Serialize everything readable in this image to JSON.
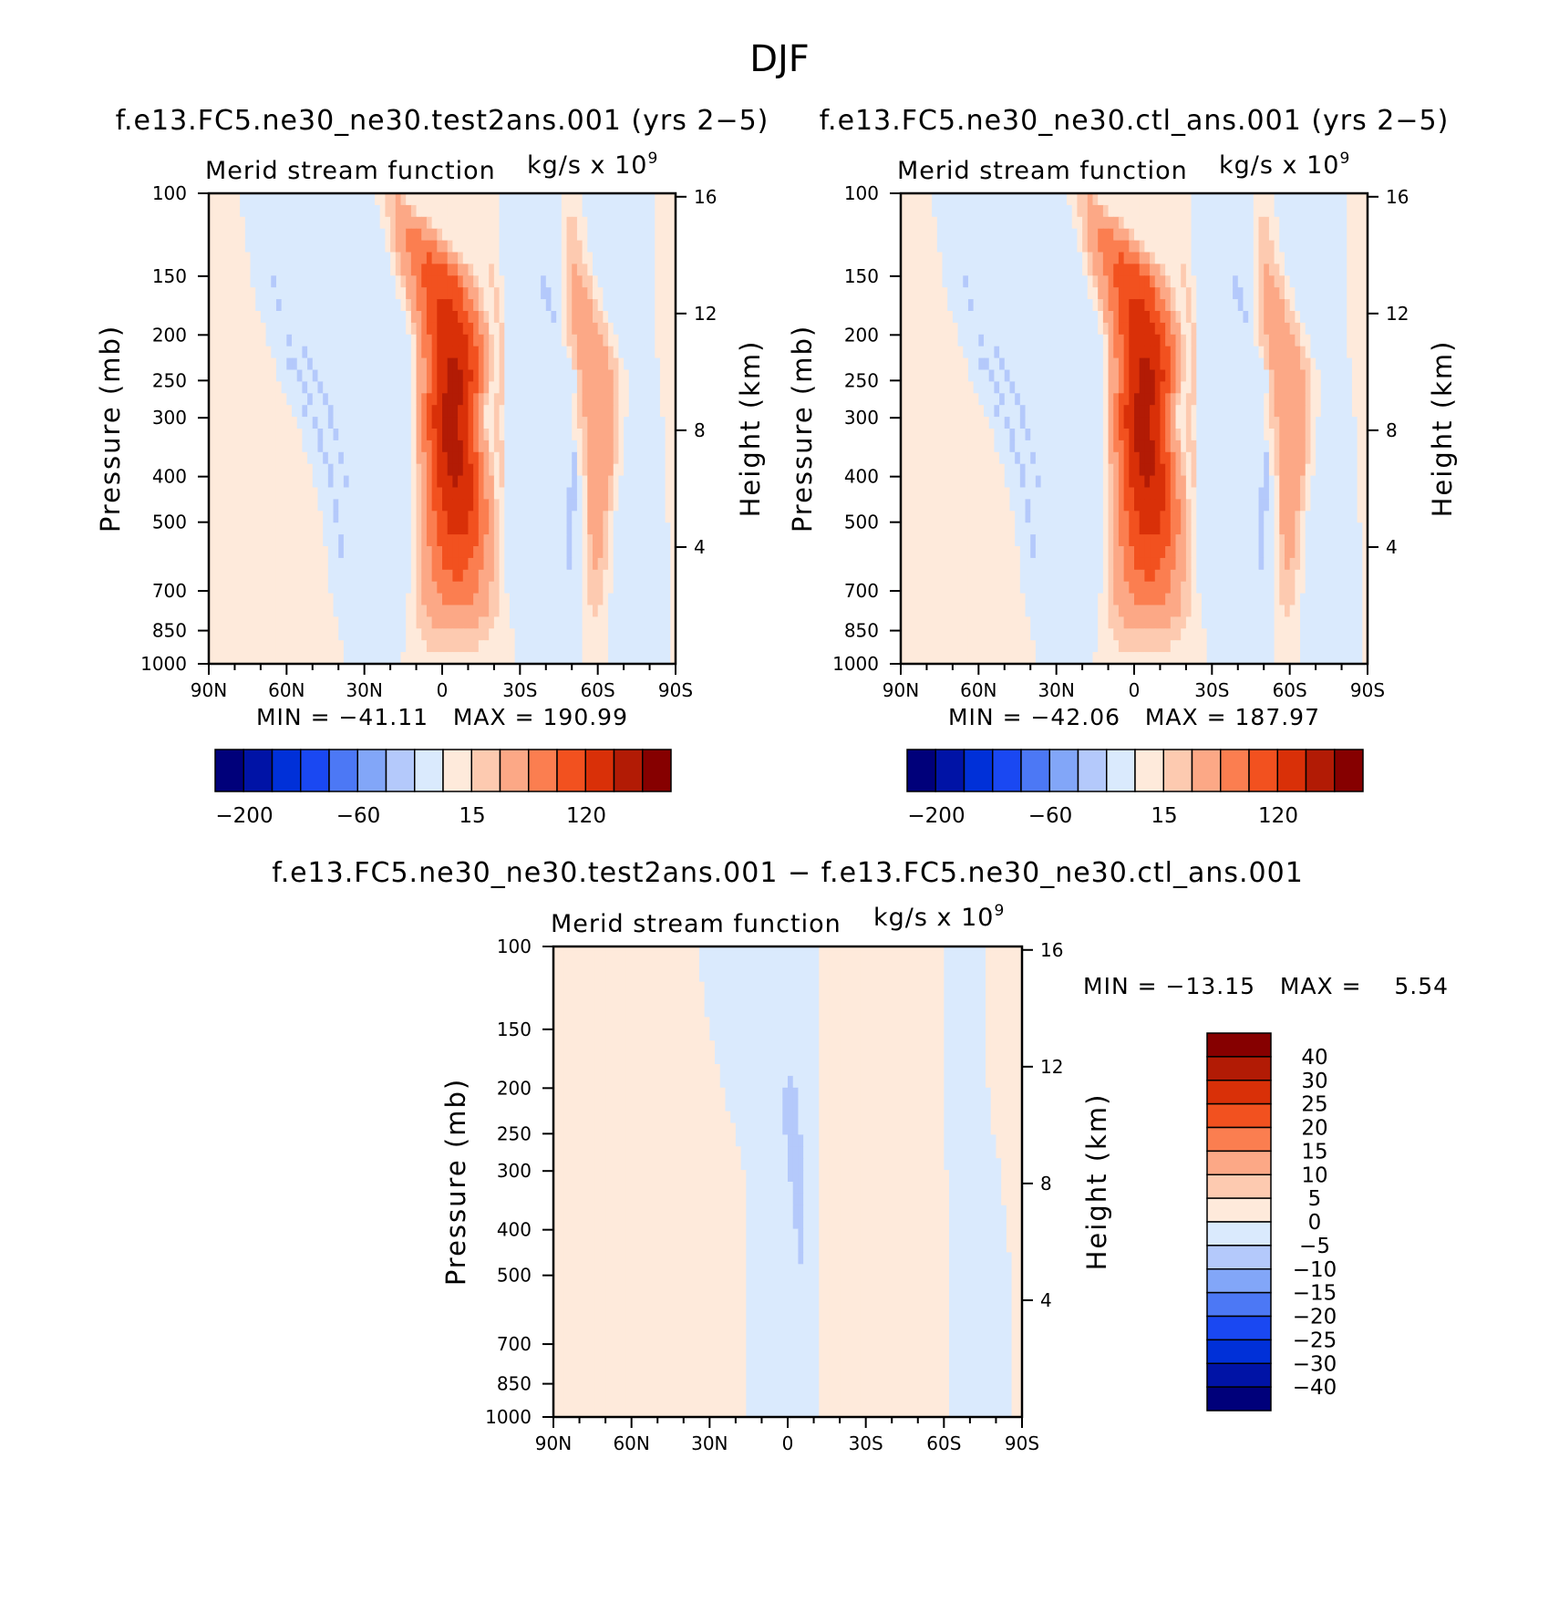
{
  "chart_data": [
    {
      "type": "heatmap",
      "case_title": "f.e13.FC5.ne30_ne30.test2ans.001 (yrs 2−5)",
      "title": "Merid stream function",
      "units": "kg/s x 10",
      "units_exp": "9",
      "ylabel": "Pressure (mb)",
      "y2label": "Height (km)",
      "xticks": [
        "90N",
        "60N",
        "30N",
        "0",
        "30S",
        "60S",
        "90S"
      ],
      "yticks": [
        100,
        150,
        200,
        250,
        300,
        400,
        500,
        700,
        850,
        1000
      ],
      "y2ticks": [
        16,
        12,
        8,
        4
      ],
      "xlim": [
        90,
        -90
      ],
      "ylim": [
        1000,
        100
      ],
      "y_scale": "log",
      "stats": {
        "min_label": "MIN",
        "max_label": "MAX",
        "min": "−41.11",
        "max": "190.99"
      },
      "contour_levels": [
        -200,
        -150,
        -100,
        -80,
        -60,
        -40,
        -20,
        0,
        15,
        30,
        60,
        90,
        120,
        150,
        200
      ],
      "colorbar_labels": [
        "−200",
        "−60",
        "15",
        "120"
      ],
      "cells": [
        {
          "lat": [
            78,
            74,
            68,
            63,
            56,
            50,
            46,
            43,
            40,
            37
          ],
          "amp": -4.3
        },
        {
          "lat": [
            73,
            68,
            63,
            58,
            53,
            45,
            41,
            37,
            34,
            30
          ],
          "amp": -26
        },
        {
          "lat": [
            72,
            66,
            61,
            56,
            51,
            45,
            42,
            40,
            37,
            34
          ],
          "amp": -30
        },
        {
          "lat": [
            70,
            65,
            59,
            53,
            47,
            41,
            38,
            36,
            33,
            30
          ],
          "amp": -22
        },
        {
          "lat": [
            63,
            58,
            51,
            44,
            38,
            34,
            32,
            29,
            27,
            24
          ],
          "amp": -19
        },
        {
          "lat": [
            48,
            39,
            24,
            16,
            14,
            14,
            13,
            13,
            14,
            16
          ],
          "amp": -6
        },
        {
          "lat": [
            26,
            19,
            13,
            12,
            12,
            12,
            12,
            14,
            17,
            20
          ],
          "amp": 162
        },
        {
          "lat": [
            12,
            -16,
            -21,
            -21,
            -18,
            -22,
            -24,
            -25,
            -27,
            -27
          ],
          "amp": 27
        },
        {
          "lat": [
            -21,
            -23,
            -24,
            -24,
            -24,
            -24,
            -24,
            -25,
            -25,
            -25
          ],
          "amp": -18
        },
        {
          "lat": [
            -26,
            -32,
            -45,
            -52,
            -49,
            -48,
            -45,
            -43,
            -41,
            -41
          ],
          "amp": -32
        },
        {
          "lat": [
            -45,
            -45,
            -45,
            -48,
            -50,
            -53,
            -53,
            -54,
            -54,
            -54
          ],
          "amp": 50
        },
        {
          "lat": [
            -53,
            -59,
            -67,
            -72,
            -71,
            -69,
            -66,
            -65,
            -63,
            -63
          ],
          "amp": -8
        },
        {
          "lat": [
            -81,
            -82,
            -82,
            -84,
            -85,
            -86,
            -87,
            -88,
            -88,
            -88
          ],
          "amp": 6
        }
      ]
    },
    {
      "type": "heatmap",
      "case_title": "f.e13.FC5.ne30_ne30.ctl_ans.001 (yrs 2−5)",
      "title": "Merid stream function",
      "units": "kg/s x 10",
      "units_exp": "9",
      "ylabel": "Pressure (mb)",
      "y2label": "Height (km)",
      "xticks": [
        "90N",
        "60N",
        "30N",
        "0",
        "30S",
        "60S",
        "90S"
      ],
      "yticks": [
        100,
        150,
        200,
        250,
        300,
        400,
        500,
        700,
        850,
        1000
      ],
      "y2ticks": [
        16,
        12,
        8,
        4
      ],
      "xlim": [
        90,
        -90
      ],
      "ylim": [
        1000,
        100
      ],
      "y_scale": "log",
      "stats": {
        "min_label": "MIN",
        "max_label": "MAX",
        "min": "−42.06",
        "max": "187.97"
      },
      "contour_levels": [
        -200,
        -150,
        -100,
        -80,
        -60,
        -40,
        -20,
        0,
        15,
        30,
        60,
        90,
        120,
        150,
        200
      ],
      "colorbar_labels": [
        "−200",
        "−60",
        "15",
        "120"
      ],
      "cells": [
        {
          "lat": [
            78,
            74,
            68,
            63,
            56,
            50,
            46,
            43,
            40,
            37
          ],
          "amp": -4.3
        },
        {
          "lat": [
            73,
            68,
            63,
            58,
            53,
            45,
            41,
            37,
            34,
            30
          ],
          "amp": -26
        },
        {
          "lat": [
            72,
            66,
            61,
            56,
            51,
            45,
            42,
            40,
            37,
            34
          ],
          "amp": -30
        },
        {
          "lat": [
            70,
            65,
            59,
            53,
            47,
            41,
            38,
            36,
            33,
            30
          ],
          "amp": -22
        },
        {
          "lat": [
            63,
            58,
            51,
            44,
            38,
            34,
            32,
            29,
            27,
            24
          ],
          "amp": -19
        },
        {
          "lat": [
            48,
            39,
            24,
            16,
            14,
            14,
            13,
            13,
            14,
            16
          ],
          "amp": -6
        },
        {
          "lat": [
            26,
            19,
            13,
            12,
            12,
            12,
            12,
            14,
            17,
            20
          ],
          "amp": 162
        },
        {
          "lat": [
            12,
            -16,
            -21,
            -21,
            -18,
            -22,
            -24,
            -25,
            -27,
            -27
          ],
          "amp": 27
        },
        {
          "lat": [
            -21,
            -23,
            -24,
            -24,
            -24,
            -24,
            -24,
            -25,
            -25,
            -25
          ],
          "amp": -18
        },
        {
          "lat": [
            -26,
            -32,
            -45,
            -52,
            -49,
            -48,
            -45,
            -43,
            -41,
            -41
          ],
          "amp": -32
        },
        {
          "lat": [
            -45,
            -45,
            -45,
            -48,
            -50,
            -53,
            -53,
            -54,
            -54,
            -54
          ],
          "amp": 50
        },
        {
          "lat": [
            -53,
            -59,
            -67,
            -72,
            -71,
            -69,
            -66,
            -65,
            -63,
            -63
          ],
          "amp": -8
        },
        {
          "lat": [
            -81,
            -82,
            -82,
            -84,
            -85,
            -86,
            -87,
            -88,
            -88,
            -88
          ],
          "amp": 6
        }
      ]
    },
    {
      "type": "heatmap",
      "case_title": "f.e13.FC5.ne30_ne30.test2ans.001 − f.e13.FC5.ne30_ne30.ctl_ans.001",
      "title": "Merid stream function",
      "units": "kg/s x 10",
      "units_exp": "9",
      "ylabel": "Pressure (mb)",
      "y2label": "Height (km)",
      "xticks": [
        "90N",
        "60N",
        "30N",
        "0",
        "30S",
        "60S",
        "90S"
      ],
      "yticks": [
        100,
        150,
        200,
        250,
        300,
        400,
        500,
        700,
        850,
        1000
      ],
      "y2ticks": [
        16,
        12,
        8,
        4
      ],
      "xlim": [
        90,
        -90
      ],
      "ylim": [
        1000,
        100
      ],
      "y_scale": "log",
      "stats": {
        "min_label": "MIN",
        "max_label": "MAX",
        "min": "−13.15",
        "max": "5.54"
      },
      "contour_levels": [
        -40,
        -30,
        -25,
        -20,
        -15,
        -10,
        -5,
        0,
        5,
        10,
        15,
        20,
        25,
        30,
        40
      ],
      "colorbar_labels": [
        "40",
        "30",
        "25",
        "20",
        "15",
        "10",
        "5",
        "0",
        "−5",
        "−10",
        "−15",
        "−20",
        "−25",
        "−30",
        "−40"
      ],
      "cells": [
        {
          "lat": [
            87,
            87,
            87,
            86,
            86,
            86,
            86,
            86,
            86,
            86
          ],
          "amp": 2
        },
        {
          "lat": [
            73,
            68,
            64,
            60,
            55,
            51,
            46,
            43,
            40,
            37
          ],
          "amp": 1.5
        },
        {
          "lat": [
            35,
            30,
            25,
            20,
            17,
            16,
            16,
            16,
            16,
            16
          ],
          "amp": -3
        },
        {
          "lat": [
            24,
            15,
            10,
            8,
            5,
            2,
            0,
            -1,
            -2,
            -3
          ],
          "amp": -6
        },
        {
          "lat": [
            -12,
            -12,
            -12,
            -12,
            -12,
            -12,
            -12,
            -12,
            -12,
            -12
          ],
          "amp": 2
        },
        {
          "lat": [
            -60,
            -60,
            -60,
            -60,
            -61,
            -62,
            -62,
            -62,
            -62,
            -62
          ],
          "amp": -2.5
        },
        {
          "lat": [
            -75,
            -76,
            -77,
            -79,
            -82,
            -84,
            -86,
            -86,
            -86,
            -86
          ],
          "amp": 1.5
        }
      ]
    }
  ],
  "figure_title": "DJF",
  "colors": {
    "palette": [
      "#00007a",
      "#0013a6",
      "#0030d8",
      "#1a48f2",
      "#4c78f5",
      "#82a6f8",
      "#b4c9fb",
      "#daeafd",
      "#feeadb",
      "#fdcab0",
      "#fca886",
      "#fb7e50",
      "#f2511f",
      "#d93008",
      "#b21b05",
      "#860000"
    ]
  }
}
